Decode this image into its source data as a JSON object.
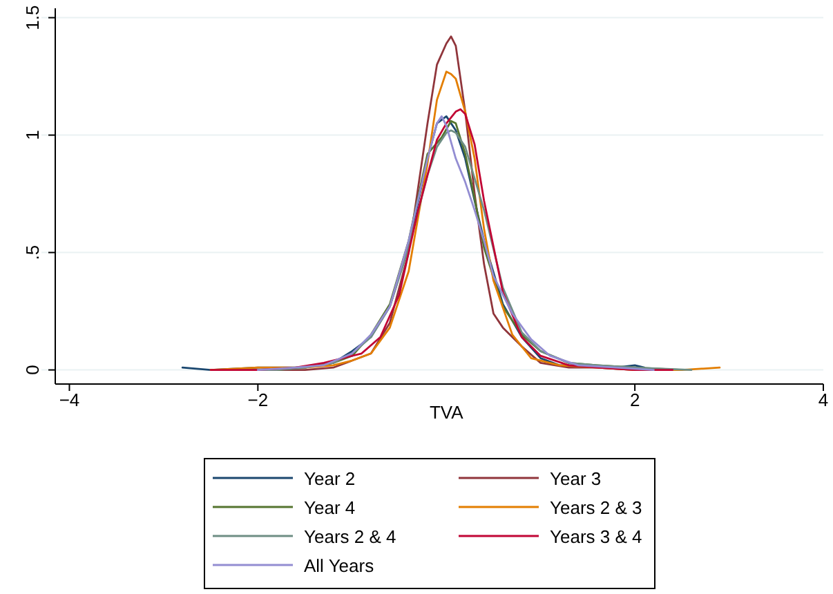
{
  "chart_data": {
    "type": "line",
    "xlabel": "TVA",
    "xlim": [
      -4.15,
      4
    ],
    "ylim": [
      -0.06,
      1.54
    ],
    "xticks": [
      {
        "value": -4,
        "label": "−4"
      },
      {
        "value": -2,
        "label": "−2"
      },
      2,
      4
    ],
    "yticks": [
      0,
      {
        "value": 0.5,
        "label": ".5"
      },
      1,
      1.5
    ],
    "grid": "y",
    "legend": "bottom",
    "marker": "none",
    "line_style": "solid",
    "series": [
      {
        "name": "Year 2",
        "color": "#1a476f",
        "x": [
          -2.8,
          -2.5,
          -2,
          -1.5,
          -1.2,
          -1,
          -0.8,
          -0.6,
          -0.4,
          -0.2,
          -0.1,
          0,
          0.1,
          0.2,
          0.3,
          0.4,
          0.6,
          0.8,
          1,
          1.2,
          1.5,
          1.8,
          2,
          2.1
        ],
        "values": [
          0.01,
          0,
          0.01,
          0.01,
          0.03,
          0.08,
          0.14,
          0.27,
          0.53,
          0.9,
          1.05,
          1.08,
          1.02,
          0.9,
          0.72,
          0.55,
          0.28,
          0.14,
          0.05,
          0.02,
          0.02,
          0.01,
          0.02,
          0.01
        ]
      },
      {
        "name": "Year 3",
        "color": "#90353b",
        "x": [
          -2.4,
          -2,
          -1.5,
          -1.2,
          -1,
          -0.8,
          -0.6,
          -0.4,
          -0.2,
          -0.1,
          0,
          0.05,
          0.1,
          0.2,
          0.3,
          0.4,
          0.5,
          0.6,
          0.8,
          1,
          1.3,
          1.6,
          2,
          2.3
        ],
        "values": [
          0,
          0,
          0,
          0.01,
          0.04,
          0.07,
          0.2,
          0.5,
          1.05,
          1.3,
          1.39,
          1.42,
          1.38,
          1.1,
          0.75,
          0.45,
          0.24,
          0.18,
          0.1,
          0.03,
          0.01,
          0.01,
          0,
          0
        ]
      },
      {
        "name": "Year 4",
        "color": "#55752f",
        "x": [
          -2.2,
          -1.8,
          -1.5,
          -1.2,
          -1,
          -0.8,
          -0.6,
          -0.4,
          -0.2,
          -0.05,
          0.05,
          0.1,
          0.2,
          0.3,
          0.4,
          0.6,
          0.8,
          1,
          1.3,
          1.6,
          2,
          2.5
        ],
        "values": [
          0,
          0,
          0.01,
          0.03,
          0.06,
          0.15,
          0.28,
          0.55,
          0.92,
          0.99,
          1.06,
          1.05,
          0.92,
          0.73,
          0.52,
          0.27,
          0.15,
          0.08,
          0.03,
          0.02,
          0.01,
          0
        ]
      },
      {
        "name": "Years 2 & 3",
        "color": "#e37e00",
        "x": [
          -2.5,
          -2,
          -1.5,
          -1.2,
          -1,
          -0.8,
          -0.6,
          -0.4,
          -0.2,
          -0.1,
          0,
          0.05,
          0.1,
          0.2,
          0.3,
          0.4,
          0.5,
          0.7,
          0.9,
          1.2,
          1.6,
          2,
          2.5,
          2.9
        ],
        "values": [
          0,
          0.01,
          0.01,
          0.02,
          0.04,
          0.07,
          0.18,
          0.42,
          0.88,
          1.15,
          1.27,
          1.26,
          1.24,
          1.1,
          0.9,
          0.6,
          0.38,
          0.15,
          0.05,
          0.02,
          0.01,
          0,
          0,
          0.01
        ]
      },
      {
        "name": "Years 2 & 4",
        "color": "#6e8e84",
        "x": [
          -2.2,
          -1.8,
          -1.5,
          -1.2,
          -1,
          -0.8,
          -0.6,
          -0.4,
          -0.2,
          -0.1,
          0,
          0.05,
          0.1,
          0.2,
          0.4,
          0.6,
          0.8,
          1,
          1.3,
          1.6,
          2,
          2.6
        ],
        "values": [
          0,
          0,
          0.01,
          0.03,
          0.07,
          0.14,
          0.27,
          0.52,
          0.83,
          0.95,
          1.01,
          1.02,
          1.01,
          0.95,
          0.68,
          0.35,
          0.16,
          0.08,
          0.03,
          0.02,
          0.01,
          0
        ]
      },
      {
        "name": "Years 3 & 4",
        "color": "#c10534",
        "x": [
          -2.5,
          -2,
          -1.6,
          -1.3,
          -1.1,
          -0.9,
          -0.7,
          -0.5,
          -0.3,
          -0.1,
          0,
          0.1,
          0.15,
          0.2,
          0.3,
          0.4,
          0.6,
          0.8,
          1,
          1.3,
          1.6,
          2,
          2.4
        ],
        "values": [
          0,
          0,
          0.01,
          0.03,
          0.05,
          0.07,
          0.14,
          0.32,
          0.68,
          0.98,
          1.05,
          1.1,
          1.11,
          1.09,
          0.96,
          0.72,
          0.33,
          0.14,
          0.06,
          0.02,
          0.01,
          0,
          0
        ]
      },
      {
        "name": "All Years",
        "color": "#938dd2",
        "x": [
          -2,
          -1.6,
          -1.3,
          -1,
          -0.8,
          -0.6,
          -0.4,
          -0.2,
          -0.1,
          -0.05,
          0,
          0.1,
          0.2,
          0.3,
          0.4,
          0.5,
          0.7,
          0.9,
          1.1,
          1.4,
          1.8,
          2.2
        ],
        "values": [
          0,
          0.01,
          0.02,
          0.07,
          0.15,
          0.27,
          0.55,
          0.9,
          1.05,
          1.08,
          1.04,
          0.9,
          0.8,
          0.68,
          0.55,
          0.4,
          0.24,
          0.13,
          0.06,
          0.02,
          0.01,
          0
        ]
      }
    ]
  }
}
